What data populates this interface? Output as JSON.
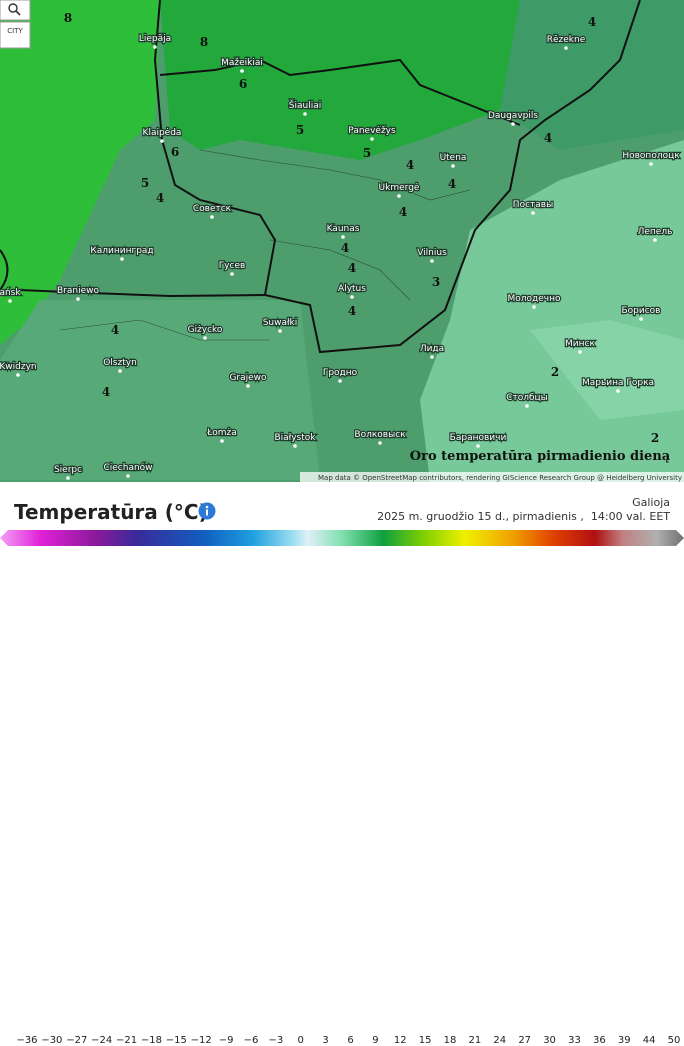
{
  "map": {
    "controls": {
      "city": "CITY"
    },
    "title": "Oro temperatūra pirmadienio dieną",
    "attribution": "Map data © OpenStreetMap contributors, rendering GIScience Research Group @ Heidelberg University",
    "cities": [
      "Liepāja",
      "Mažeikiai",
      "Rēzekne",
      "Šiauliai",
      "Panevėžys",
      "Daugavpils",
      "Klaipėda",
      "Utena",
      "Новополоцк",
      "Ukmergė",
      "Советск",
      "Поставы",
      "Kaunas",
      "Лепель",
      "Калининград",
      "Vilnius",
      "Гусев",
      "Alytus",
      "Braniewo",
      "Молодечно",
      "ańsk",
      "Suwałki",
      "Giżycko",
      "Борисов",
      "Лида",
      "Минск",
      "Kwidzyn",
      "Olsztyn",
      "Гродно",
      "Grajewo",
      "Марьина Горка",
      "Столбцы",
      "Łomża",
      "Białystok",
      "Волковыск",
      "Барановичи",
      "Ciechanów",
      "Sierpc"
    ],
    "contours": [
      "8",
      "8",
      "6",
      "5",
      "6",
      "5",
      "4",
      "5",
      "4",
      "4",
      "4",
      "4",
      "4",
      "3",
      "4",
      "4",
      "4",
      "2",
      "2",
      "4",
      "4"
    ]
  },
  "legend": {
    "title": "Temperatūra (°C)",
    "valid_label": "Galioja",
    "valid_time": "2025 m. gruodžio 15 d., pirmadienis ,  14:00 val. EET",
    "ticks": [
      "−36",
      "−30",
      "−27",
      "−24",
      "−21",
      "−18",
      "−15",
      "−12",
      "−9",
      "−6",
      "−3",
      "0",
      "3",
      "6",
      "9",
      "12",
      "15",
      "18",
      "21",
      "24",
      "27",
      "30",
      "33",
      "36",
      "39",
      "44",
      "50"
    ]
  }
}
